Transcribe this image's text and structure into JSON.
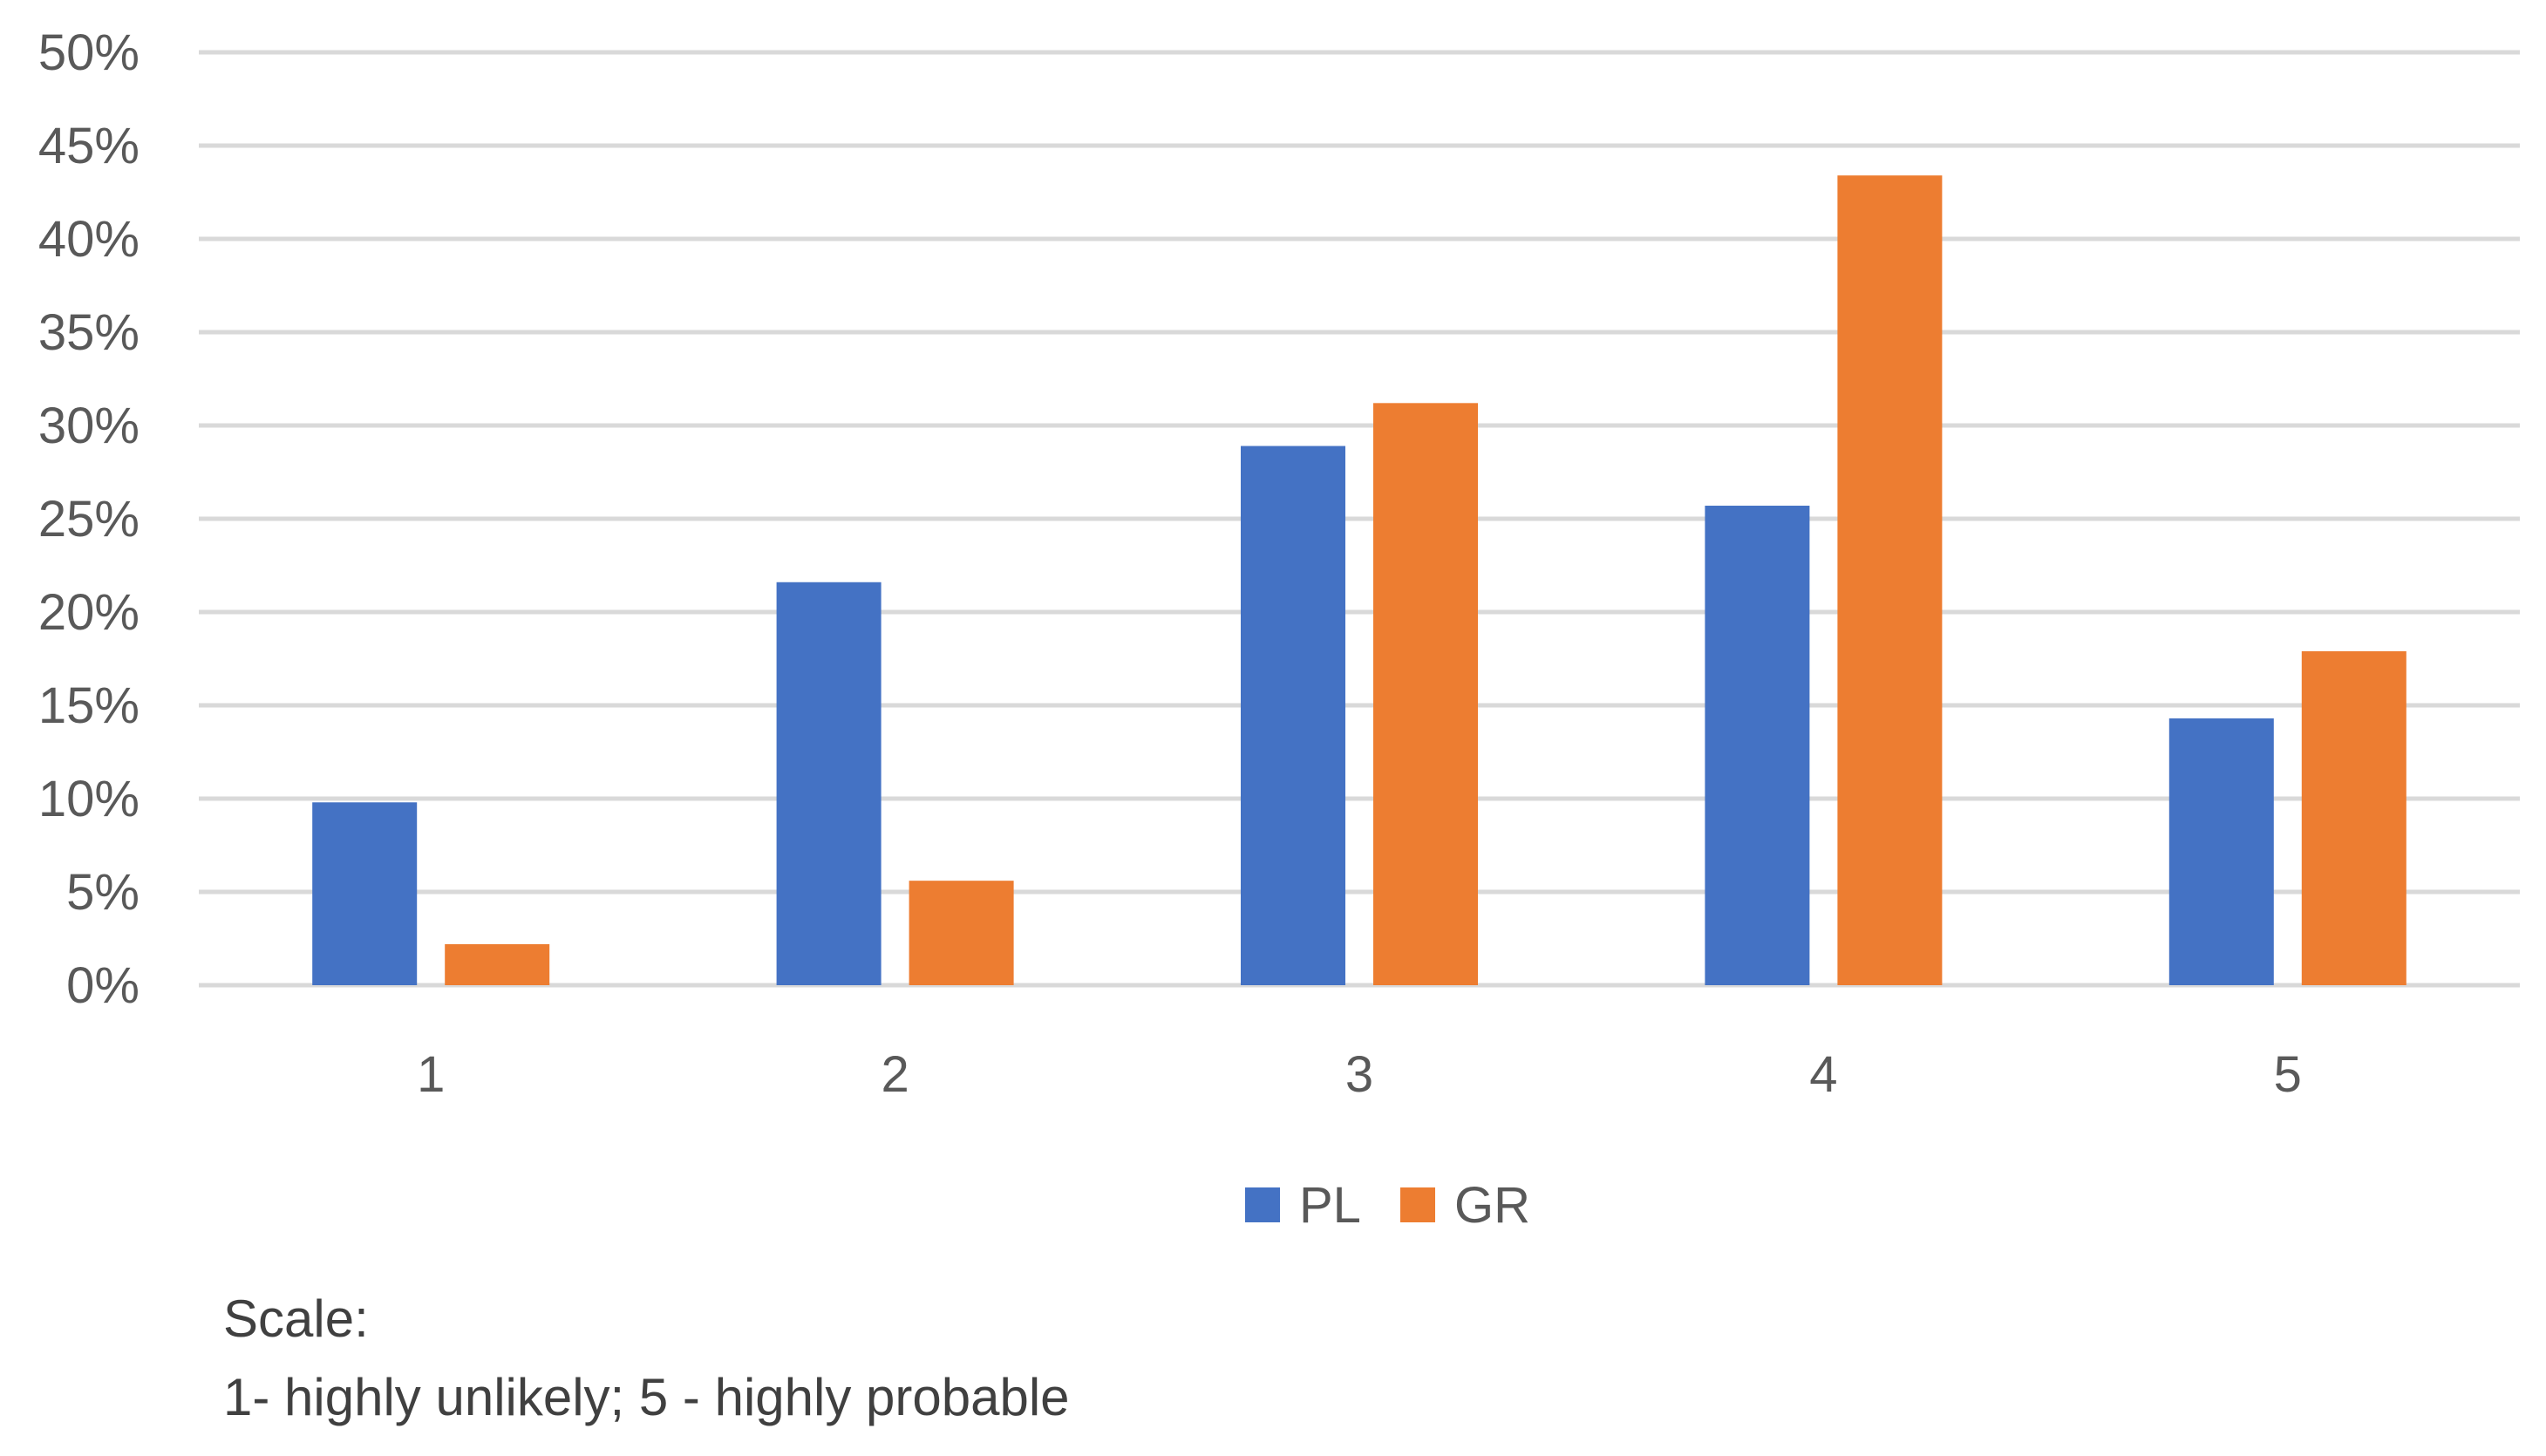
{
  "chart_data": {
    "type": "bar",
    "categories": [
      "1",
      "2",
      "3",
      "4",
      "5"
    ],
    "series": [
      {
        "name": "PL",
        "values": [
          9.8,
          21.6,
          28.9,
          25.7,
          14.3
        ],
        "color": "#4472C4"
      },
      {
        "name": "GR",
        "values": [
          2.2,
          5.6,
          31.2,
          43.4,
          17.9
        ],
        "color": "#ED7D31"
      }
    ],
    "y_ticks": [
      "0%",
      "5%",
      "10%",
      "15%",
      "20%",
      "25%",
      "30%",
      "35%",
      "40%",
      "45%",
      "50%"
    ],
    "ylim": [
      0,
      50
    ],
    "y_step": 5,
    "gridlines": true,
    "legend_position": "bottom",
    "title": "",
    "xlabel": "",
    "ylabel": "",
    "grid_color": "#D9D9D9"
  },
  "note": {
    "title": "Scale:",
    "text": "1- highly unlikely; 5 - highly probable"
  }
}
